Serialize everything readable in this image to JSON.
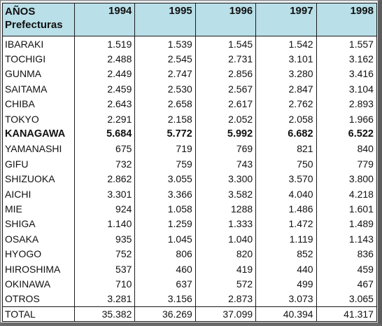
{
  "header": {
    "corner_top": "AÑOS",
    "corner_bottom": "Prefecturas",
    "years": [
      "1994",
      "1995",
      "1996",
      "1997",
      "1998"
    ]
  },
  "rows": [
    {
      "name": "IBARAKI",
      "values": [
        "1.519",
        "1.539",
        "1.545",
        "1.542",
        "1.557"
      ]
    },
    {
      "name": "TOCHIGI",
      "values": [
        "2.488",
        "2.545",
        "2.731",
        "3.101",
        "3.162"
      ]
    },
    {
      "name": "GUNMA",
      "values": [
        "2.449",
        "2.747",
        "2.856",
        "3.280",
        "3.416"
      ]
    },
    {
      "name": "SAITAMA",
      "values": [
        "2.459",
        "2.530",
        "2.567",
        "2.847",
        "3.104"
      ]
    },
    {
      "name": "CHIBA",
      "values": [
        "2.643",
        "2.658",
        "2.617",
        "2.762",
        "2.893"
      ]
    },
    {
      "name": "TOKYO",
      "values": [
        "2.291",
        "2.158",
        "2.052",
        "2.058",
        "1.966"
      ]
    },
    {
      "name": "KANAGAWA",
      "values": [
        "5.684",
        "5.772",
        "5.992",
        "6.682",
        "6.522"
      ],
      "bold": true
    },
    {
      "name": "YAMANASHI",
      "values": [
        "675",
        "719",
        "769",
        "821",
        "840"
      ]
    },
    {
      "name": "GIFU",
      "values": [
        "732",
        "759",
        "743",
        "750",
        "779"
      ]
    },
    {
      "name": "SHIZUOKA",
      "values": [
        "2.862",
        "3.055",
        "3.300",
        "3.570",
        "3.800"
      ]
    },
    {
      "name": "AICHI",
      "values": [
        "3.301",
        "3.366",
        "3.582",
        "4.040",
        "4.218"
      ]
    },
    {
      "name": "MIE",
      "values": [
        "924",
        "1.058",
        "1288",
        "1.486",
        "1.601"
      ]
    },
    {
      "name": "SHIGA",
      "values": [
        "1.140",
        "1.259",
        "1.333",
        "1.472",
        "1.489"
      ]
    },
    {
      "name": "OSAKA",
      "values": [
        "935",
        "1.045",
        "1.040",
        "1.119",
        "1.143"
      ]
    },
    {
      "name": "HYOGO",
      "values": [
        "752",
        "806",
        "820",
        "852",
        "836"
      ]
    },
    {
      "name": "HIROSHIMA",
      "values": [
        "537",
        "460",
        "419",
        "440",
        "459"
      ]
    },
    {
      "name": "OKINAWA",
      "values": [
        "710",
        "637",
        "572",
        "499",
        "467"
      ]
    },
    {
      "name": "OTROS",
      "values": [
        "3.281",
        "3.156",
        "2.873",
        "3.073",
        "3.065"
      ]
    }
  ],
  "total": {
    "name": "TOTAL",
    "values": [
      "35.382",
      "36.269",
      "37.099",
      "40.394",
      "41.317"
    ]
  },
  "colors": {
    "header_bg": "#b9dfe8",
    "grid": "#1a1a1a",
    "frame": "#5c5c5c"
  }
}
